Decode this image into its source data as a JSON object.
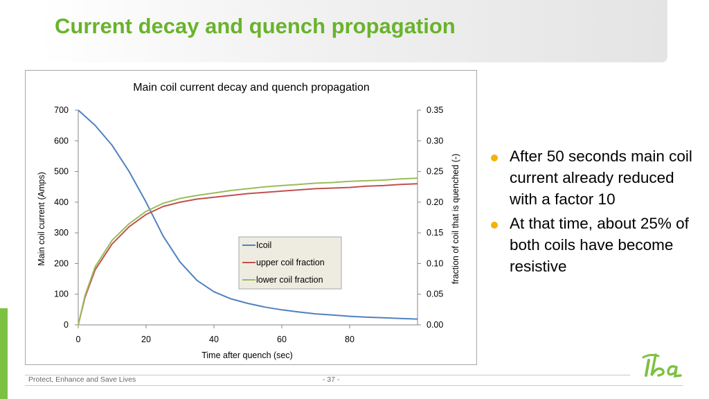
{
  "slide": {
    "title": "Current decay and quench propagation",
    "bullets": [
      "After 50 seconds main coil current already reduced with  a factor 10",
      "At that time, about 25% of both coils have become resistive"
    ],
    "footer": "Protect, Enhance and Save Lives",
    "page_number": "- 37 -",
    "logo_text": "iba",
    "colors": {
      "title": "#69b32c",
      "bullet": "#f2b400",
      "accent_strip": "#7dc142"
    }
  },
  "chart_data": {
    "type": "line",
    "title": "Main coil current decay and quench propagation",
    "xlabel": "Time after quench (sec)",
    "ylabel": "Main coil current (Amps)",
    "y2label": "fraction of coil that is quenched (-)",
    "xlim": [
      0,
      100
    ],
    "ylim": [
      0,
      700
    ],
    "y2lim": [
      0,
      0.35
    ],
    "xticks": [
      "0",
      "20",
      "40",
      "60",
      "80"
    ],
    "xtick_values": [
      0,
      20,
      40,
      60,
      80
    ],
    "yticks": [
      "0",
      "100",
      "200",
      "300",
      "400",
      "500",
      "600",
      "700"
    ],
    "y2ticks": [
      "0.00",
      "0.05",
      "0.10",
      "0.15",
      "0.20",
      "0.25",
      "0.30",
      "0.35"
    ],
    "legend_position": "center-right",
    "grid": false,
    "series": [
      {
        "name": "Icoil",
        "axis": "left",
        "color": "#4f81bd",
        "x": [
          0,
          5,
          10,
          15,
          20,
          25,
          30,
          35,
          40,
          45,
          50,
          55,
          60,
          65,
          70,
          75,
          80,
          85,
          90,
          95,
          100
        ],
        "y": [
          700,
          650,
          585,
          500,
          400,
          290,
          205,
          145,
          108,
          85,
          70,
          58,
          49,
          42,
          36,
          32,
          28,
          25,
          23,
          21,
          19
        ]
      },
      {
        "name": "upper coil fraction",
        "axis": "right",
        "color": "#c0504d",
        "x": [
          0,
          2,
          5,
          10,
          15,
          20,
          25,
          30,
          35,
          40,
          45,
          50,
          55,
          60,
          65,
          70,
          75,
          80,
          85,
          90,
          95,
          100
        ],
        "y": [
          0,
          0.045,
          0.09,
          0.132,
          0.16,
          0.18,
          0.193,
          0.2,
          0.205,
          0.208,
          0.211,
          0.214,
          0.216,
          0.218,
          0.22,
          0.222,
          0.223,
          0.224,
          0.226,
          0.227,
          0.229,
          0.23
        ]
      },
      {
        "name": "lower coil fraction",
        "axis": "right",
        "color": "#9bbb59",
        "x": [
          0,
          2,
          5,
          10,
          15,
          20,
          25,
          30,
          35,
          40,
          45,
          50,
          55,
          60,
          65,
          70,
          75,
          80,
          85,
          90,
          95,
          100
        ],
        "y": [
          0,
          0.048,
          0.095,
          0.138,
          0.165,
          0.185,
          0.198,
          0.206,
          0.211,
          0.215,
          0.219,
          0.222,
          0.225,
          0.227,
          0.229,
          0.231,
          0.232,
          0.234,
          0.235,
          0.236,
          0.238,
          0.239
        ]
      }
    ]
  }
}
